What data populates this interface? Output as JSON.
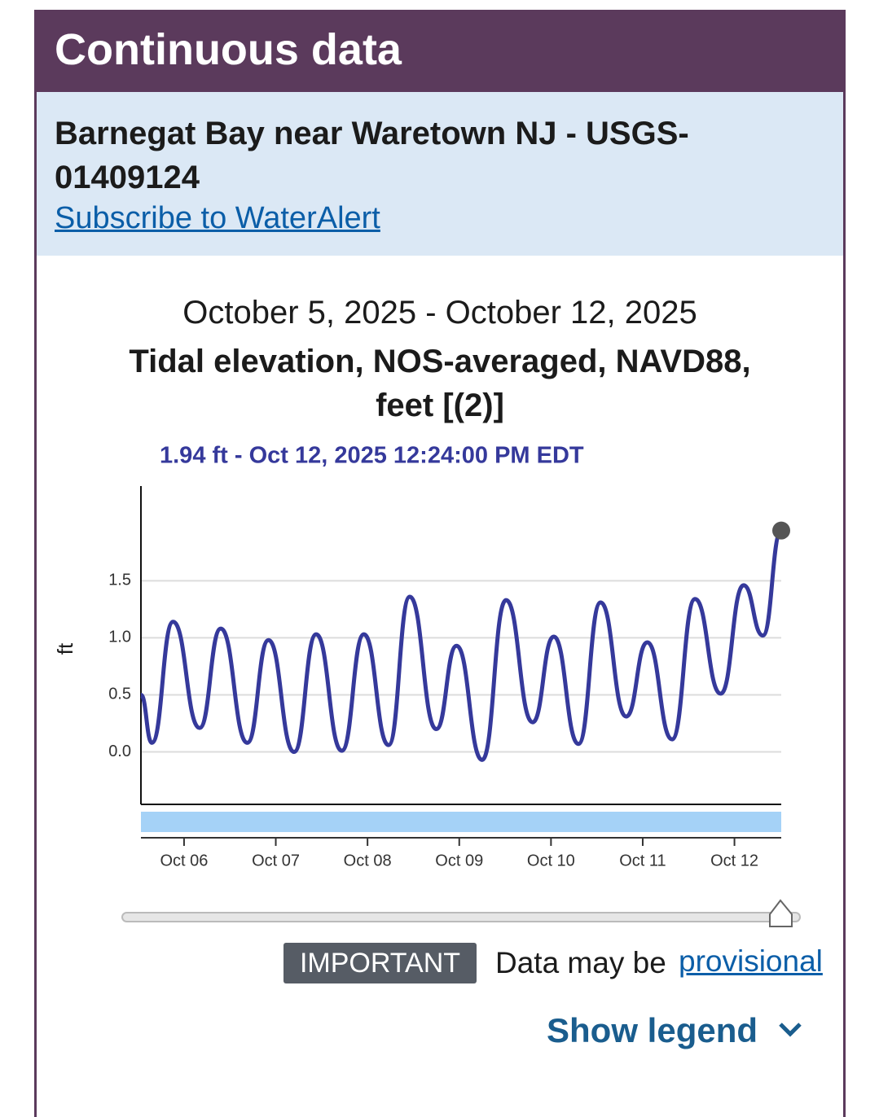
{
  "header": {
    "title": "Continuous data"
  },
  "station": {
    "name": "Barnegat Bay near Waretown NJ - USGS-01409124",
    "link": "Subscribe to WaterAlert"
  },
  "chart_data": {
    "type": "line",
    "subtitle": "October 5, 2025 - October 12, 2025",
    "title": "Tidal elevation, NOS-averaged, NAVD88, feet [(2)]",
    "tooltip": "1.94 ft - Oct 12, 2025 12:24:00 PM EDT",
    "y_label": "ft",
    "x": [
      5.53,
      5.65,
      5.88,
      6.17,
      6.4,
      6.69,
      6.92,
      7.2,
      7.44,
      7.72,
      7.96,
      8.23,
      8.46,
      8.75,
      8.97,
      9.25,
      9.51,
      9.8,
      10.03,
      10.3,
      10.54,
      10.82,
      11.05,
      11.32,
      11.57,
      11.85,
      12.1,
      12.31,
      12.51
    ],
    "series": [
      {
        "color": "#35399b",
        "values": [
          0.5,
          0.08,
          1.14,
          0.21,
          1.08,
          0.08,
          0.98,
          0.0,
          1.03,
          0.01,
          1.03,
          0.06,
          1.36,
          0.2,
          0.93,
          -0.07,
          1.33,
          0.26,
          1.01,
          0.07,
          1.31,
          0.31,
          0.96,
          0.11,
          1.34,
          0.51,
          1.46,
          1.02,
          1.94
        ]
      }
    ],
    "xlim": [
      5.53,
      12.51
    ],
    "ylim": [
      -0.46,
      2.33
    ],
    "xticks": [
      {
        "value": 6,
        "label": "Oct 06"
      },
      {
        "value": 7,
        "label": "Oct 07"
      },
      {
        "value": 8,
        "label": "Oct 08"
      },
      {
        "value": 9,
        "label": "Oct 09"
      },
      {
        "value": 10,
        "label": "Oct 10"
      },
      {
        "value": 11,
        "label": "Oct 11"
      },
      {
        "value": 12,
        "label": "Oct 12"
      }
    ],
    "yticks": [
      {
        "value": 0,
        "label": "0.0"
      },
      0.5,
      {
        "value": 1,
        "label": "1.0"
      },
      1.5
    ],
    "grid": true
  },
  "notice": {
    "badge": "IMPORTANT",
    "text": "Data may be",
    "link": "provisional"
  },
  "legend_toggle": "Show legend"
}
